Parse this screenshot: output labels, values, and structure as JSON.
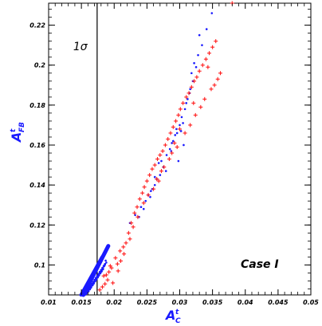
{
  "chart_data": {
    "type": "scatter",
    "title": "",
    "xlabel": "A_C^t",
    "ylabel": "A_FB^t",
    "xlim": [
      0.01,
      0.05
    ],
    "ylim": [
      0.085,
      0.231
    ],
    "xticks": [
      0.01,
      0.015,
      0.02,
      0.025,
      0.03,
      0.035,
      0.04,
      0.045,
      0.05
    ],
    "xtick_labels": [
      "0.01",
      "0.015",
      "0.02",
      "0.025",
      "0.03",
      "0.035",
      "0.04",
      "0.045",
      "0.05"
    ],
    "yticks": [
      0.1,
      0.12,
      0.14,
      0.16,
      0.18,
      0.2,
      0.22
    ],
    "ytick_labels": [
      "0.1",
      "0.12",
      "0.14",
      "0.16",
      "0.18",
      "0.2",
      "0.22"
    ],
    "grid": false,
    "vline": {
      "x": 0.0174,
      "label": "1σ"
    },
    "annotation": "Case I",
    "colors": {
      "blue": "#1a1aff",
      "red": "#ff1a1a",
      "axis": "#000000"
    },
    "series": [
      {
        "marker": "dot",
        "color": "#1a1aff",
        "x": [
          0.0155,
          0.0158,
          0.016,
          0.0162,
          0.0164,
          0.0166,
          0.0168,
          0.017,
          0.0172,
          0.0174,
          0.0176,
          0.0178,
          0.018,
          0.0182,
          0.0184,
          0.0186,
          0.0157,
          0.0161,
          0.0165,
          0.0169,
          0.0173,
          0.0177,
          0.0181,
          0.0185,
          0.0159,
          0.0163,
          0.0167,
          0.0171,
          0.0175,
          0.0179,
          0.0183,
          0.0156,
          0.016,
          0.0164,
          0.0168,
          0.0172,
          0.0176,
          0.018,
          0.0184,
          0.0188,
          0.019,
          0.0161,
          0.0165,
          0.0169,
          0.0173,
          0.0177,
          0.0181,
          0.0186,
          0.0163,
          0.0167,
          0.0171,
          0.0175,
          0.0179,
          0.0183,
          0.0158,
          0.0162,
          0.0166,
          0.017,
          0.0174,
          0.0178,
          0.0182,
          0.0187,
          0.0164,
          0.0168,
          0.0172,
          0.0176,
          0.018,
          0.0185,
          0.0224,
          0.0232,
          0.0241,
          0.0248,
          0.0252,
          0.0256,
          0.0262,
          0.027,
          0.0275,
          0.0268,
          0.028,
          0.0285,
          0.029,
          0.0296,
          0.03,
          0.0303,
          0.0308,
          0.0312,
          0.0316,
          0.032,
          0.0306,
          0.0298,
          0.0265,
          0.0258,
          0.0279,
          0.0287,
          0.0293,
          0.031,
          0.0318,
          0.0322,
          0.0328,
          0.0334,
          0.0341,
          0.0349,
          0.0302,
          0.0305,
          0.0295,
          0.0288,
          0.0272,
          0.0262,
          0.0255,
          0.0245,
          0.0238,
          0.0315,
          0.0325,
          0.033
        ],
        "y": [
          0.085,
          0.0865,
          0.0875,
          0.0885,
          0.0895,
          0.0905,
          0.0915,
          0.0925,
          0.0935,
          0.0945,
          0.0955,
          0.0965,
          0.0975,
          0.0985,
          0.0995,
          0.1005,
          0.0855,
          0.0875,
          0.0895,
          0.0915,
          0.0935,
          0.0955,
          0.0975,
          0.0995,
          0.0862,
          0.0882,
          0.0902,
          0.0922,
          0.0942,
          0.0962,
          0.0982,
          0.0852,
          0.0872,
          0.0892,
          0.0912,
          0.0932,
          0.0952,
          0.0972,
          0.0992,
          0.1012,
          0.1095,
          0.0868,
          0.0888,
          0.0908,
          0.0928,
          0.0948,
          0.0968,
          0.1002,
          0.0878,
          0.0898,
          0.0918,
          0.0938,
          0.0958,
          0.0978,
          0.0858,
          0.0878,
          0.0898,
          0.0918,
          0.0938,
          0.0958,
          0.0978,
          0.1022,
          0.0885,
          0.0905,
          0.0925,
          0.0945,
          0.0965,
          0.0998,
          0.121,
          0.125,
          0.129,
          0.132,
          0.135,
          0.137,
          0.14,
          0.145,
          0.149,
          0.151,
          0.155,
          0.158,
          0.162,
          0.166,
          0.17,
          0.174,
          0.178,
          0.183,
          0.188,
          0.192,
          0.16,
          0.152,
          0.143,
          0.138,
          0.147,
          0.157,
          0.165,
          0.181,
          0.196,
          0.201,
          0.205,
          0.21,
          0.218,
          0.226,
          0.167,
          0.171,
          0.168,
          0.161,
          0.152,
          0.144,
          0.134,
          0.128,
          0.124,
          0.186,
          0.199,
          0.215
        ]
      },
      {
        "marker": "plus",
        "color": "#ff1a1a",
        "x": [
          0.0178,
          0.0182,
          0.0186,
          0.019,
          0.0184,
          0.0192,
          0.0196,
          0.0205,
          0.021,
          0.0202,
          0.0215,
          0.0198,
          0.0188,
          0.0194,
          0.0209,
          0.0218,
          0.0222,
          0.0226,
          0.0231,
          0.0235,
          0.0239,
          0.0243,
          0.0236,
          0.0229,
          0.0246,
          0.025,
          0.0254,
          0.0258,
          0.0262,
          0.0266,
          0.027,
          0.0274,
          0.0278,
          0.0282,
          0.0286,
          0.029,
          0.0294,
          0.0298,
          0.0301,
          0.0305,
          0.031,
          0.0314,
          0.0318,
          0.0322,
          0.0326,
          0.033,
          0.0335,
          0.034,
          0.0345,
          0.035,
          0.0355,
          0.0265,
          0.0272,
          0.0288,
          0.0296,
          0.0308,
          0.0316,
          0.0324,
          0.0332,
          0.0338,
          0.0348,
          0.0353,
          0.0358,
          0.0362,
          0.038,
          0.0245,
          0.0252,
          0.026,
          0.0268,
          0.0276,
          0.0284,
          0.0292,
          0.03,
          0.0321,
          0.0343,
          0.0206,
          0.0214,
          0.0224
        ],
        "y": [
          0.0875,
          0.089,
          0.0905,
          0.0925,
          0.0945,
          0.0965,
          0.0985,
          0.1005,
          0.102,
          0.1035,
          0.1055,
          0.091,
          0.095,
          0.0995,
          0.107,
          0.111,
          0.116,
          0.121,
          0.126,
          0.129,
          0.133,
          0.136,
          0.124,
          0.119,
          0.139,
          0.142,
          0.145,
          0.148,
          0.15,
          0.153,
          0.155,
          0.157,
          0.16,
          0.163,
          0.166,
          0.169,
          0.172,
          0.175,
          0.178,
          0.181,
          0.184,
          0.186,
          0.189,
          0.192,
          0.194,
          0.197,
          0.2,
          0.203,
          0.206,
          0.209,
          0.212,
          0.143,
          0.147,
          0.156,
          0.159,
          0.166,
          0.17,
          0.175,
          0.179,
          0.183,
          0.188,
          0.19,
          0.193,
          0.196,
          0.231,
          0.131,
          0.135,
          0.138,
          0.142,
          0.149,
          0.153,
          0.161,
          0.168,
          0.181,
          0.199,
          0.097,
          0.109,
          0.113
        ]
      }
    ]
  }
}
